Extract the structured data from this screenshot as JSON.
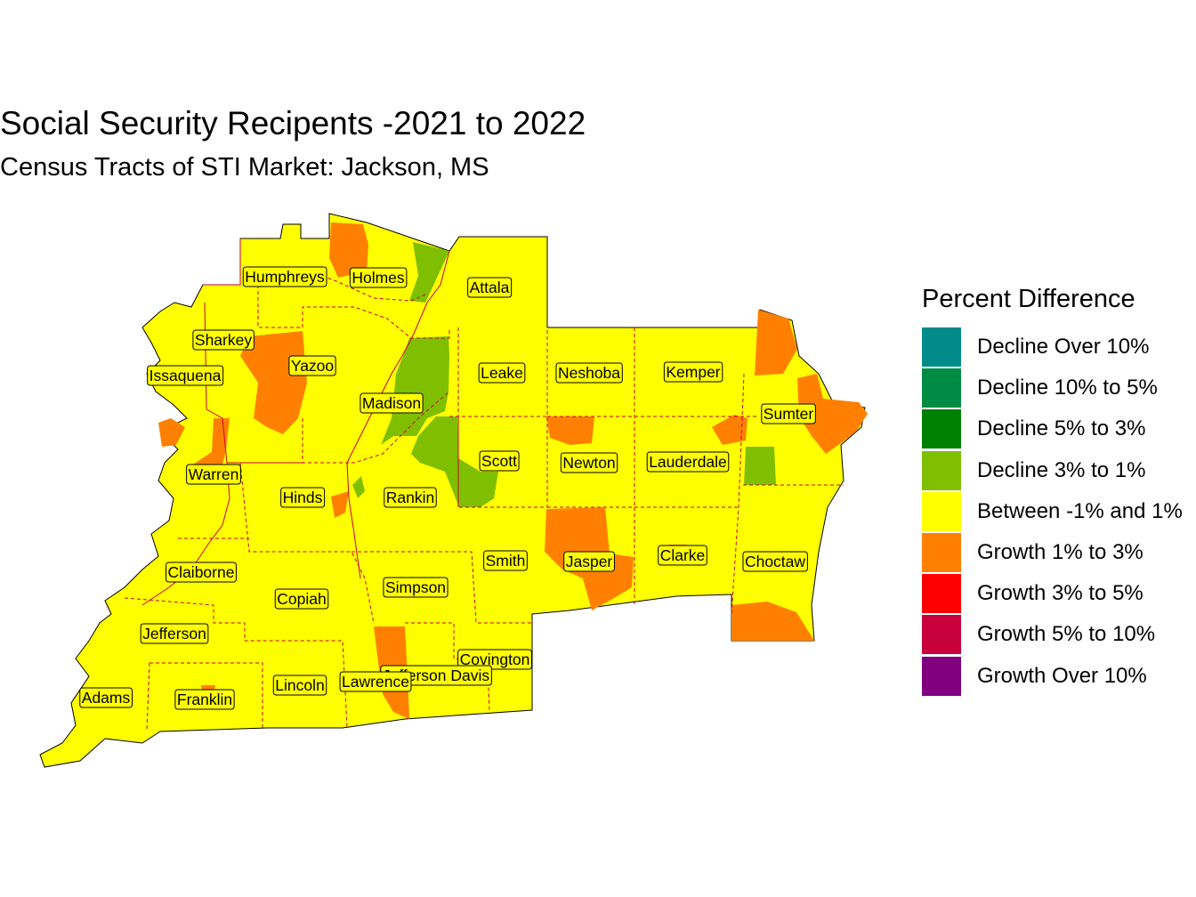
{
  "title": "Social Security Recipents -2021 to 2022",
  "subtitle": "Census Tracts of STI Market: Jackson, MS",
  "legend": {
    "title": "Percent Difference",
    "items": [
      {
        "label": "Decline Over 10%",
        "color": "#008B8B"
      },
      {
        "label": "Decline 10% to 5%",
        "color": "#008B45"
      },
      {
        "label": "Decline 5% to 3%",
        "color": "#008000"
      },
      {
        "label": "Decline 3% to 1%",
        "color": "#7FBF00"
      },
      {
        "label": "Between -1% and 1%",
        "color": "#FFFF00"
      },
      {
        "label": "Growth 1% to 3%",
        "color": "#FF8000"
      },
      {
        "label": "Growth 3% to 5%",
        "color": "#FF0000"
      },
      {
        "label": "Growth 5% to 10%",
        "color": "#C8003C"
      },
      {
        "label": "Growth Over 10%",
        "color": "#800080"
      }
    ]
  },
  "counties": [
    "Humphreys",
    "Holmes",
    "Attala",
    "Sharkey",
    "Yazoo",
    "Issaquena",
    "Madison",
    "Leake",
    "Neshoba",
    "Kemper",
    "Sumter",
    "Warren",
    "Scott",
    "Newton",
    "Lauderdale",
    "Hinds",
    "Rankin",
    "Smith",
    "Jasper",
    "Clarke",
    "Choctaw",
    "Claiborne",
    "Copiah",
    "Simpson",
    "Jefferson",
    "Covington",
    "Jefferson Davis",
    "Lawrence",
    "Lincoln",
    "Adams",
    "Franklin"
  ]
}
